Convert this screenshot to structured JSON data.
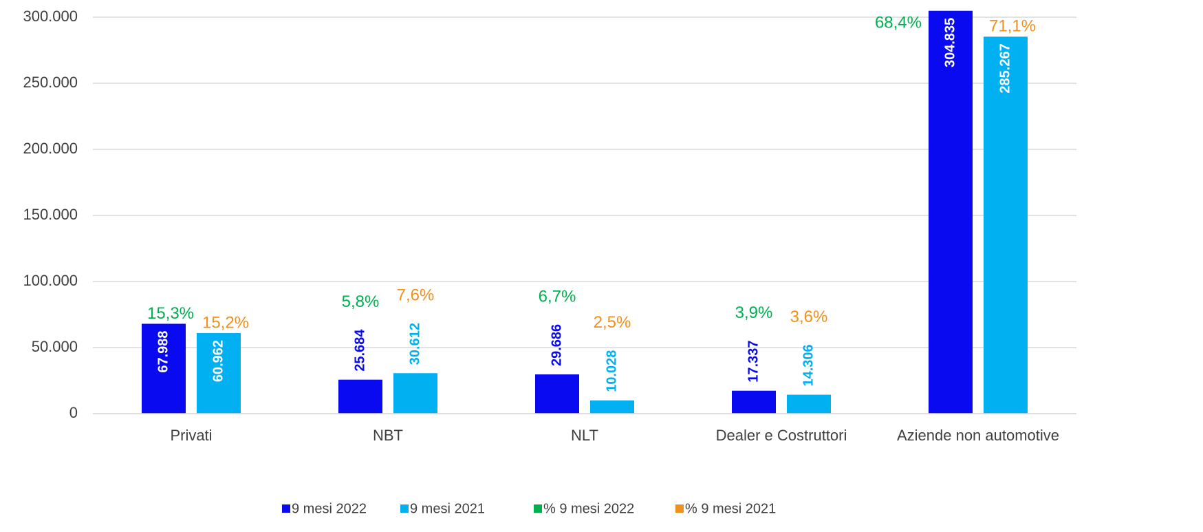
{
  "chart_data": {
    "type": "bar",
    "categories": [
      "Privati",
      "NBT",
      "NLT",
      "Dealer e Costruttori",
      "Aziende non automotive"
    ],
    "series": [
      {
        "name": "9 mesi 2022",
        "color": "#0a0af0",
        "values": [
          67988,
          25684,
          29686,
          17337,
          304835
        ],
        "value_labels": [
          "67.988",
          "25.684",
          "29.686",
          "17.337",
          "304.835"
        ]
      },
      {
        "name": "9 mesi 2021",
        "color": "#00b0f0",
        "values": [
          60962,
          30612,
          10028,
          14306,
          285267
        ],
        "value_labels": [
          "60.962",
          "30.612",
          "10.028",
          "14.306",
          "285.267"
        ]
      }
    ],
    "percent_series": [
      {
        "name": "% 9 mesi 2022",
        "color": "#00b050",
        "values": [
          15.3,
          5.8,
          6.7,
          3.9,
          68.4
        ],
        "value_labels": [
          "15,3%",
          "5,8%",
          "6,7%",
          "3,9%",
          "68,4%"
        ]
      },
      {
        "name": "% 9 mesi 2021",
        "color": "#f0901e",
        "values": [
          15.2,
          7.6,
          2.5,
          3.6,
          71.1
        ],
        "value_labels": [
          "15,2%",
          "7,6%",
          "2,5%",
          "3,6%",
          "71,1%"
        ]
      }
    ],
    "ylim": [
      0,
      300000
    ],
    "yticks": [
      0,
      {
        "value": 50000,
        "label": "50.000"
      },
      {
        "value": 100000,
        "label": "100.000"
      },
      {
        "value": 150000,
        "label": "150.000"
      },
      {
        "value": 200000,
        "label": "200.000"
      },
      {
        "value": 250000,
        "label": "250.000"
      },
      {
        "value": 300000,
        "label": "300.000"
      }
    ],
    "grid": true,
    "legend": "bottom"
  }
}
